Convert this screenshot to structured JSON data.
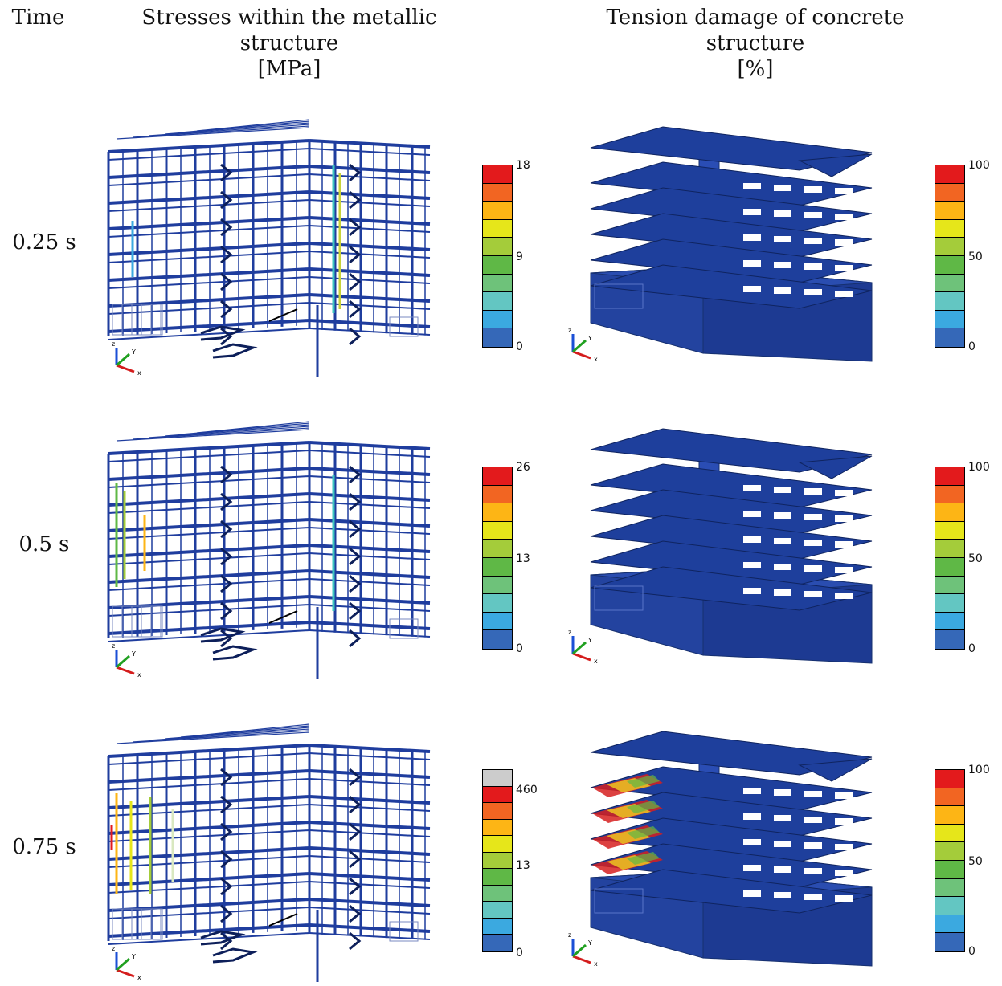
{
  "headers": {
    "time": "Time",
    "stress_title": "Stresses within the metallic structure",
    "stress_unit": "[MPa]",
    "damage_title": "Tension damage of concrete structure",
    "damage_unit": "[%]"
  },
  "rows": [
    {
      "time": "0.25 s",
      "stress_ticks": [
        "18",
        "9",
        "0"
      ],
      "damage_ticks": [
        "100",
        "50",
        "0"
      ],
      "stress_grey_top": false,
      "damaged_slabs": 0
    },
    {
      "time": "0.5 s",
      "stress_ticks": [
        "26",
        "13",
        "0"
      ],
      "damage_ticks": [
        "100",
        "50",
        "0"
      ],
      "stress_grey_top": false,
      "damaged_slabs": 0
    },
    {
      "time": "0.75 s",
      "stress_ticks": [
        "460",
        "13",
        "0"
      ],
      "damage_ticks": [
        "100",
        "50",
        "0"
      ],
      "stress_grey_top": true,
      "damaged_slabs": 4
    }
  ],
  "axes": {
    "x": "x",
    "y": "Y",
    "z": "z"
  },
  "colors": {
    "legend": [
      "#e31a1c",
      "#f26522",
      "#fdb515",
      "#e6e61a",
      "#a4cc3a",
      "#5fb846",
      "#6ec27a",
      "#63c6c2",
      "#3ba9e0",
      "#3568b8",
      "#2e4fa0"
    ],
    "grey": "#cccccc",
    "steel": "#1f3d9e",
    "slab": "#1e3f9c",
    "damage": "#d62020"
  }
}
